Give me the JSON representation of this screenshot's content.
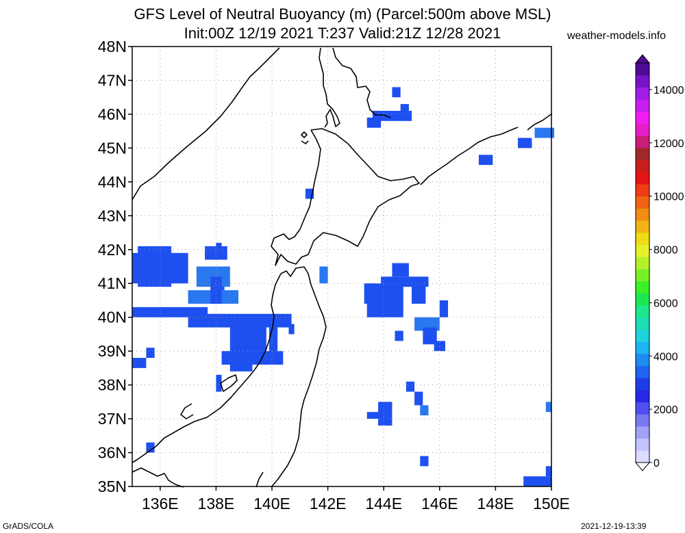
{
  "title": {
    "line1": "GFS Level of Neutral Buoyancy (m) (Parcel:500m above MSL)",
    "line2": "Init:00Z 12/19 2021 T:237 Valid:21Z 12/28 2021"
  },
  "credit": "weather-models.info",
  "footer": {
    "left": "GrADS/COLA",
    "right": "2021-12-19-13:39"
  },
  "map": {
    "lat_labels": [
      "48N",
      "47N",
      "46N",
      "45N",
      "44N",
      "43N",
      "42N",
      "41N",
      "40N",
      "39N",
      "38N",
      "37N",
      "36N",
      "35N"
    ],
    "lon_labels": [
      "136E",
      "138E",
      "140E",
      "142E",
      "144E",
      "146E",
      "148E",
      "150E"
    ],
    "lat_range": [
      35,
      48
    ],
    "lon_range": [
      135,
      150
    ],
    "grid": true,
    "field_color": "#1e50f0",
    "field_color_alt": "#2a78f0"
  },
  "colorbar": {
    "labels": [
      "14000",
      "12000",
      "10000",
      "8000",
      "6000",
      "4000",
      "2000",
      "0"
    ],
    "colors": [
      "#dcdcff",
      "#c4c4ff",
      "#a0a0f5",
      "#7878f0",
      "#5050f0",
      "#2828e6",
      "#1e3ce6",
      "#1e64f0",
      "#1e8cf0",
      "#1eb4f0",
      "#1ed2dc",
      "#1edcb4",
      "#1ee68c",
      "#1ee650",
      "#3cf028",
      "#78f028",
      "#b4f028",
      "#e6f028",
      "#f0dc14",
      "#f0b414",
      "#f08c14",
      "#f06414",
      "#f03c14",
      "#e61414",
      "#c81e1e",
      "#a02828",
      "#c81e78",
      "#e61ec8",
      "#f01ef0",
      "#c81ef0",
      "#a01ee6",
      "#7814c8",
      "#500a96"
    ]
  }
}
